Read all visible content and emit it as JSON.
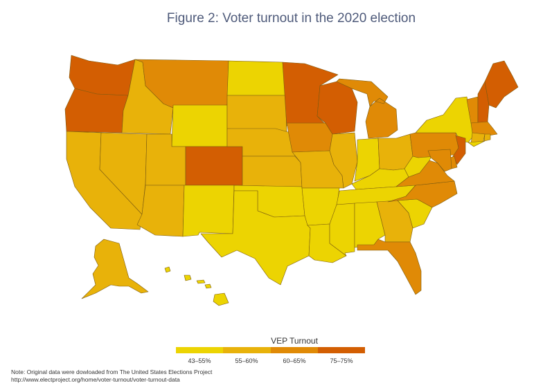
{
  "title": "Figure 2: Voter turnout in the 2020 election",
  "legend": {
    "title": "VEP Turnout",
    "bins": [
      {
        "label": "43–55%",
        "color": "#ecd402"
      },
      {
        "label": "55–60%",
        "color": "#e8b20a"
      },
      {
        "label": "60–65%",
        "color": "#e08a06"
      },
      {
        "label": "75–75%",
        "color": "#d35e02"
      }
    ]
  },
  "note": {
    "line1": "Note: Original data were dowloaded from The United States Elections Project",
    "line2": "http://www.electproject.org/home/voter-turnout/voter-turnout-data"
  },
  "states": [
    {
      "id": "WA",
      "bin": 3
    },
    {
      "id": "OR",
      "bin": 3
    },
    {
      "id": "CA",
      "bin": 1
    },
    {
      "id": "ID",
      "bin": 1
    },
    {
      "id": "NV",
      "bin": 1
    },
    {
      "id": "MT",
      "bin": 2
    },
    {
      "id": "WY",
      "bin": 0
    },
    {
      "id": "UT",
      "bin": 1
    },
    {
      "id": "AZ",
      "bin": 1
    },
    {
      "id": "CO",
      "bin": 3
    },
    {
      "id": "NM",
      "bin": 0
    },
    {
      "id": "ND",
      "bin": 0
    },
    {
      "id": "SD",
      "bin": 1
    },
    {
      "id": "NE",
      "bin": 1
    },
    {
      "id": "KS",
      "bin": 1
    },
    {
      "id": "OK",
      "bin": 0
    },
    {
      "id": "TX",
      "bin": 0
    },
    {
      "id": "MN",
      "bin": 3
    },
    {
      "id": "IA",
      "bin": 2
    },
    {
      "id": "MO",
      "bin": 1
    },
    {
      "id": "AR",
      "bin": 0
    },
    {
      "id": "LA",
      "bin": 0
    },
    {
      "id": "WI",
      "bin": 3
    },
    {
      "id": "IL",
      "bin": 1
    },
    {
      "id": "MI",
      "bin": 2
    },
    {
      "id": "IN",
      "bin": 0
    },
    {
      "id": "OH",
      "bin": 1
    },
    {
      "id": "KY",
      "bin": 0
    },
    {
      "id": "TN",
      "bin": 0
    },
    {
      "id": "MS",
      "bin": 0
    },
    {
      "id": "AL",
      "bin": 0
    },
    {
      "id": "GA",
      "bin": 1
    },
    {
      "id": "FL",
      "bin": 2
    },
    {
      "id": "SC",
      "bin": 0
    },
    {
      "id": "NC",
      "bin": 2
    },
    {
      "id": "VA",
      "bin": 2
    },
    {
      "id": "WV",
      "bin": 0
    },
    {
      "id": "PA",
      "bin": 2
    },
    {
      "id": "NY",
      "bin": 0
    },
    {
      "id": "VT",
      "bin": 2
    },
    {
      "id": "NH",
      "bin": 3
    },
    {
      "id": "ME",
      "bin": 3
    },
    {
      "id": "MA",
      "bin": 2
    },
    {
      "id": "RI",
      "bin": 1
    },
    {
      "id": "CT",
      "bin": 1
    },
    {
      "id": "NJ",
      "bin": 3
    },
    {
      "id": "DE",
      "bin": 2
    },
    {
      "id": "MD",
      "bin": 2
    },
    {
      "id": "AK",
      "bin": 1
    },
    {
      "id": "HI",
      "bin": 0
    }
  ]
}
